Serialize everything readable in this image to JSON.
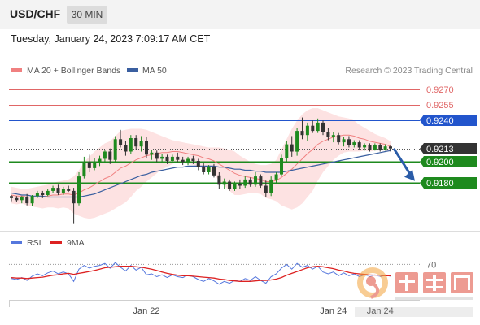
{
  "header": {
    "symbol": "USD/CHF",
    "timeframe": "30 MIN",
    "datetime": "Tuesday, January 24, 2023 7:09:17 AM CET"
  },
  "colors": {
    "ma20": "#f08080",
    "bollinger_fill": "#fde2e2",
    "ma50": "#3a5fa0",
    "resistance": "#e06666",
    "pivot": "#2255cc",
    "support": "#1e8a1e",
    "price_tag": "#333333",
    "rsi": "#5577dd",
    "rsi_ma": "#dd2222",
    "candle_up": "#1e8a1e",
    "candle_down": "#333333",
    "arrow": "#2a5ca8"
  },
  "legend": {
    "ma20": "MA 20 + Bollinger Bands",
    "ma50": "MA 50",
    "credit": "Research © 2023 Trading Central"
  },
  "rsi_legend": {
    "rsi": "RSI",
    "ma": "9MA"
  },
  "chart_data": {
    "type": "candlestick",
    "ylim": [
      0.9135,
      0.9278
    ],
    "levels": [
      {
        "value": 0.927,
        "label": "0.9270",
        "kind": "resistance"
      },
      {
        "value": 0.9255,
        "label": "0.9255",
        "kind": "resistance"
      },
      {
        "value": 0.924,
        "label": "0.9240",
        "kind": "pivot"
      },
      {
        "value": 0.9213,
        "label": "0.9213",
        "kind": "last"
      },
      {
        "value": 0.92,
        "label": "0.9200",
        "kind": "support"
      },
      {
        "value": 0.918,
        "label": "0.9180",
        "kind": "support"
      }
    ],
    "x_ticks": [
      {
        "index": 26,
        "label": "Jan 22"
      },
      {
        "index": 62,
        "label": "Jan 24"
      },
      {
        "index": 71,
        "label": "Jan 24"
      }
    ],
    "candles": [
      [
        0.9167,
        0.9168,
        0.9162,
        0.9165
      ],
      [
        0.9165,
        0.9167,
        0.9161,
        0.9163
      ],
      [
        0.9163,
        0.9167,
        0.916,
        0.9166
      ],
      [
        0.9166,
        0.9169,
        0.9158,
        0.916
      ],
      [
        0.916,
        0.9168,
        0.9157,
        0.9167
      ],
      [
        0.9167,
        0.9172,
        0.9165,
        0.917
      ],
      [
        0.917,
        0.9172,
        0.9165,
        0.9168
      ],
      [
        0.9168,
        0.9174,
        0.9167,
        0.9172
      ],
      [
        0.9172,
        0.9177,
        0.917,
        0.9175
      ],
      [
        0.9175,
        0.9178,
        0.9168,
        0.917
      ],
      [
        0.917,
        0.9176,
        0.9168,
        0.9174
      ],
      [
        0.9174,
        0.9177,
        0.9171,
        0.9172
      ],
      [
        0.9172,
        0.9175,
        0.914,
        0.916
      ],
      [
        0.916,
        0.919,
        0.9158,
        0.9186
      ],
      [
        0.9186,
        0.9205,
        0.9184,
        0.92
      ],
      [
        0.92,
        0.9207,
        0.919,
        0.9194
      ],
      [
        0.9194,
        0.9204,
        0.9192,
        0.92
      ],
      [
        0.92,
        0.9206,
        0.9196,
        0.9203
      ],
      [
        0.9203,
        0.9212,
        0.92,
        0.921
      ],
      [
        0.921,
        0.9213,
        0.9198,
        0.9202
      ],
      [
        0.9202,
        0.9225,
        0.92,
        0.9222
      ],
      [
        0.9222,
        0.9231,
        0.9214,
        0.9216
      ],
      [
        0.9216,
        0.922,
        0.9206,
        0.921
      ],
      [
        0.921,
        0.9226,
        0.9208,
        0.9223
      ],
      [
        0.9223,
        0.9226,
        0.9212,
        0.9215
      ],
      [
        0.9215,
        0.9225,
        0.921,
        0.922
      ],
      [
        0.922,
        0.9224,
        0.9204,
        0.9207
      ],
      [
        0.9207,
        0.9212,
        0.9202,
        0.9209
      ],
      [
        0.9209,
        0.9211,
        0.92,
        0.9203
      ],
      [
        0.9203,
        0.9208,
        0.92,
        0.9205
      ],
      [
        0.9205,
        0.9207,
        0.9198,
        0.9201
      ],
      [
        0.9201,
        0.9207,
        0.9199,
        0.9205
      ],
      [
        0.9205,
        0.9209,
        0.92,
        0.9202
      ],
      [
        0.9202,
        0.9205,
        0.9197,
        0.92
      ],
      [
        0.92,
        0.9205,
        0.9197,
        0.9203
      ],
      [
        0.9203,
        0.9206,
        0.9198,
        0.9201
      ],
      [
        0.9201,
        0.9203,
        0.9192,
        0.9195
      ],
      [
        0.9195,
        0.9199,
        0.9188,
        0.919
      ],
      [
        0.919,
        0.9197,
        0.9188,
        0.9195
      ],
      [
        0.9195,
        0.9198,
        0.9185,
        0.9187
      ],
      [
        0.9187,
        0.919,
        0.9174,
        0.9178
      ],
      [
        0.9178,
        0.9184,
        0.9174,
        0.9181
      ],
      [
        0.9181,
        0.9183,
        0.9172,
        0.9174
      ],
      [
        0.9174,
        0.9181,
        0.9172,
        0.9179
      ],
      [
        0.9179,
        0.9183,
        0.9174,
        0.9177
      ],
      [
        0.9177,
        0.9186,
        0.9175,
        0.9183
      ],
      [
        0.9183,
        0.9185,
        0.9176,
        0.9178
      ],
      [
        0.9178,
        0.919,
        0.9176,
        0.9186
      ],
      [
        0.9186,
        0.9188,
        0.9175,
        0.9177
      ],
      [
        0.9177,
        0.9182,
        0.9166,
        0.917
      ],
      [
        0.917,
        0.9186,
        0.9167,
        0.9183
      ],
      [
        0.9183,
        0.919,
        0.918,
        0.9188
      ],
      [
        0.9188,
        0.9207,
        0.9186,
        0.9204
      ],
      [
        0.9204,
        0.922,
        0.92,
        0.9217
      ],
      [
        0.9217,
        0.9225,
        0.9205,
        0.921
      ],
      [
        0.921,
        0.9233,
        0.9206,
        0.923
      ],
      [
        0.923,
        0.9243,
        0.9222,
        0.9226
      ],
      [
        0.9226,
        0.9238,
        0.922,
        0.9235
      ],
      [
        0.9235,
        0.924,
        0.9228,
        0.923
      ],
      [
        0.923,
        0.9242,
        0.9228,
        0.9238
      ],
      [
        0.9238,
        0.924,
        0.9226,
        0.9229
      ],
      [
        0.9229,
        0.9233,
        0.9221,
        0.9224
      ],
      [
        0.9224,
        0.9229,
        0.9219,
        0.9226
      ],
      [
        0.9226,
        0.9228,
        0.9217,
        0.9219
      ],
      [
        0.9219,
        0.9224,
        0.9215,
        0.9222
      ],
      [
        0.9222,
        0.9225,
        0.9214,
        0.9216
      ],
      [
        0.9216,
        0.9221,
        0.9214,
        0.9219
      ],
      [
        0.9219,
        0.9221,
        0.9212,
        0.9214
      ],
      [
        0.9214,
        0.9218,
        0.9211,
        0.9216
      ],
      [
        0.9216,
        0.9218,
        0.921,
        0.9212
      ],
      [
        0.9212,
        0.9218,
        0.9211,
        0.9216
      ],
      [
        0.9216,
        0.9218,
        0.921,
        0.9212
      ],
      [
        0.9212,
        0.9217,
        0.9211,
        0.9215
      ],
      [
        0.9215,
        0.9216,
        0.921,
        0.9213
      ]
    ],
    "ma20": [
      0.9168,
      0.9167,
      0.9167,
      0.9166,
      0.9166,
      0.9166,
      0.9166,
      0.9167,
      0.9168,
      0.9168,
      0.9169,
      0.9169,
      0.9168,
      0.917,
      0.9173,
      0.9175,
      0.9178,
      0.9181,
      0.9184,
      0.9186,
      0.919,
      0.9194,
      0.9196,
      0.9199,
      0.9202,
      0.9204,
      0.9206,
      0.9207,
      0.9208,
      0.9209,
      0.9209,
      0.921,
      0.921,
      0.9209,
      0.9208,
      0.9207,
      0.9206,
      0.9204,
      0.9203,
      0.9201,
      0.9198,
      0.9195,
      0.9192,
      0.9189,
      0.9187,
      0.9186,
      0.9185,
      0.9184,
      0.9183,
      0.9181,
      0.9181,
      0.9182,
      0.9185,
      0.9189,
      0.9193,
      0.9198,
      0.9203,
      0.9208,
      0.9212,
      0.9217,
      0.922,
      0.9222,
      0.9224,
      0.9225,
      0.9226,
      0.9226,
      0.9225,
      0.9223,
      0.9222,
      0.922,
      0.9219,
      0.9218,
      0.9217,
      0.9215
    ],
    "bb_upper": [
      0.9176,
      0.9175,
      0.9174,
      0.9174,
      0.9175,
      0.9176,
      0.9177,
      0.9178,
      0.918,
      0.9181,
      0.9182,
      0.9183,
      0.9186,
      0.9192,
      0.92,
      0.9205,
      0.921,
      0.9214,
      0.9218,
      0.922,
      0.9225,
      0.923,
      0.9231,
      0.9232,
      0.9232,
      0.9232,
      0.9231,
      0.9229,
      0.9227,
      0.9225,
      0.9223,
      0.9221,
      0.922,
      0.9219,
      0.9218,
      0.9217,
      0.9216,
      0.9215,
      0.9214,
      0.9214,
      0.9214,
      0.9213,
      0.9212,
      0.921,
      0.9206,
      0.9203,
      0.92,
      0.9198,
      0.9197,
      0.9197,
      0.9198,
      0.9202,
      0.9212,
      0.9222,
      0.9232,
      0.924,
      0.9246,
      0.925,
      0.9252,
      0.9252,
      0.925,
      0.9248,
      0.9246,
      0.9244,
      0.9243,
      0.9242,
      0.924,
      0.9236,
      0.9233,
      0.923,
      0.9227,
      0.9225,
      0.9223,
      0.922
    ],
    "bb_lower": [
      0.916,
      0.9159,
      0.916,
      0.9158,
      0.9157,
      0.9156,
      0.9155,
      0.9156,
      0.9156,
      0.9155,
      0.9156,
      0.9155,
      0.915,
      0.9148,
      0.9146,
      0.9145,
      0.9146,
      0.9148,
      0.915,
      0.9152,
      0.9155,
      0.9158,
      0.9161,
      0.9166,
      0.9172,
      0.9176,
      0.9181,
      0.9185,
      0.9189,
      0.9193,
      0.9195,
      0.9198,
      0.92,
      0.9199,
      0.9198,
      0.9197,
      0.9196,
      0.9193,
      0.9191,
      0.9188,
      0.9182,
      0.9177,
      0.9172,
      0.9168,
      0.9168,
      0.9169,
      0.917,
      0.917,
      0.9169,
      0.9165,
      0.9164,
      0.9162,
      0.9158,
      0.9156,
      0.9154,
      0.9156,
      0.916,
      0.9166,
      0.9172,
      0.9182,
      0.919,
      0.9196,
      0.9202,
      0.9206,
      0.9209,
      0.921,
      0.921,
      0.921,
      0.9211,
      0.921,
      0.9211,
      0.9211,
      0.9211,
      0.921
    ],
    "ma50": [
      0.917,
      0.9169,
      0.9168,
      0.9168,
      0.9167,
      0.9167,
      0.9167,
      0.9166,
      0.9166,
      0.9166,
      0.9166,
      0.9166,
      0.9166,
      0.9166,
      0.9167,
      0.9168,
      0.9169,
      0.9171,
      0.9173,
      0.9175,
      0.9177,
      0.9179,
      0.9181,
      0.9183,
      0.9185,
      0.9187,
      0.9188,
      0.919,
      0.9191,
      0.9192,
      0.9193,
      0.9194,
      0.9195,
      0.9195,
      0.9196,
      0.9196,
      0.9196,
      0.9196,
      0.9196,
      0.9196,
      0.9195,
      0.9195,
      0.9194,
      0.9193,
      0.9193,
      0.9192,
      0.9192,
      0.9191,
      0.9191,
      0.919,
      0.919,
      0.919,
      0.919,
      0.9191,
      0.9192,
      0.9193,
      0.9194,
      0.9195,
      0.9196,
      0.9197,
      0.9198,
      0.9199,
      0.92,
      0.9201,
      0.9202,
      0.9203,
      0.9204,
      0.9205,
      0.9206,
      0.9207,
      0.9208,
      0.9209,
      0.921,
      0.9211
    ],
    "rsi": {
      "ylim": [
        0,
        100
      ],
      "level_label": "70",
      "level": 70,
      "values": [
        40,
        38,
        42,
        36,
        45,
        50,
        46,
        52,
        56,
        50,
        54,
        50,
        34,
        60,
        68,
        62,
        66,
        68,
        72,
        62,
        74,
        64,
        56,
        68,
        58,
        64,
        48,
        50,
        44,
        48,
        42,
        48,
        44,
        42,
        47,
        44,
        38,
        34,
        40,
        35,
        28,
        34,
        30,
        36,
        34,
        40,
        36,
        44,
        36,
        30,
        44,
        50,
        62,
        70,
        60,
        72,
        64,
        68,
        60,
        66,
        54,
        50,
        54,
        46,
        52,
        46,
        50,
        44,
        48,
        44,
        48,
        44,
        47,
        45
      ],
      "ma_values": [
        42,
        41,
        41,
        40,
        41,
        42,
        43,
        45,
        47,
        48,
        50,
        51,
        49,
        51,
        53,
        55,
        57,
        60,
        63,
        64,
        65,
        66,
        66,
        66,
        65,
        64,
        62,
        60,
        57,
        54,
        51,
        49,
        47,
        46,
        46,
        45,
        44,
        43,
        42,
        41,
        39,
        38,
        36,
        35,
        34,
        34,
        34,
        35,
        36,
        36,
        37,
        39,
        42,
        47,
        51,
        55,
        59,
        63,
        65,
        66,
        65,
        63,
        61,
        58,
        56,
        53,
        51,
        50,
        49,
        48,
        47,
        47,
        46,
        46
      ]
    }
  }
}
